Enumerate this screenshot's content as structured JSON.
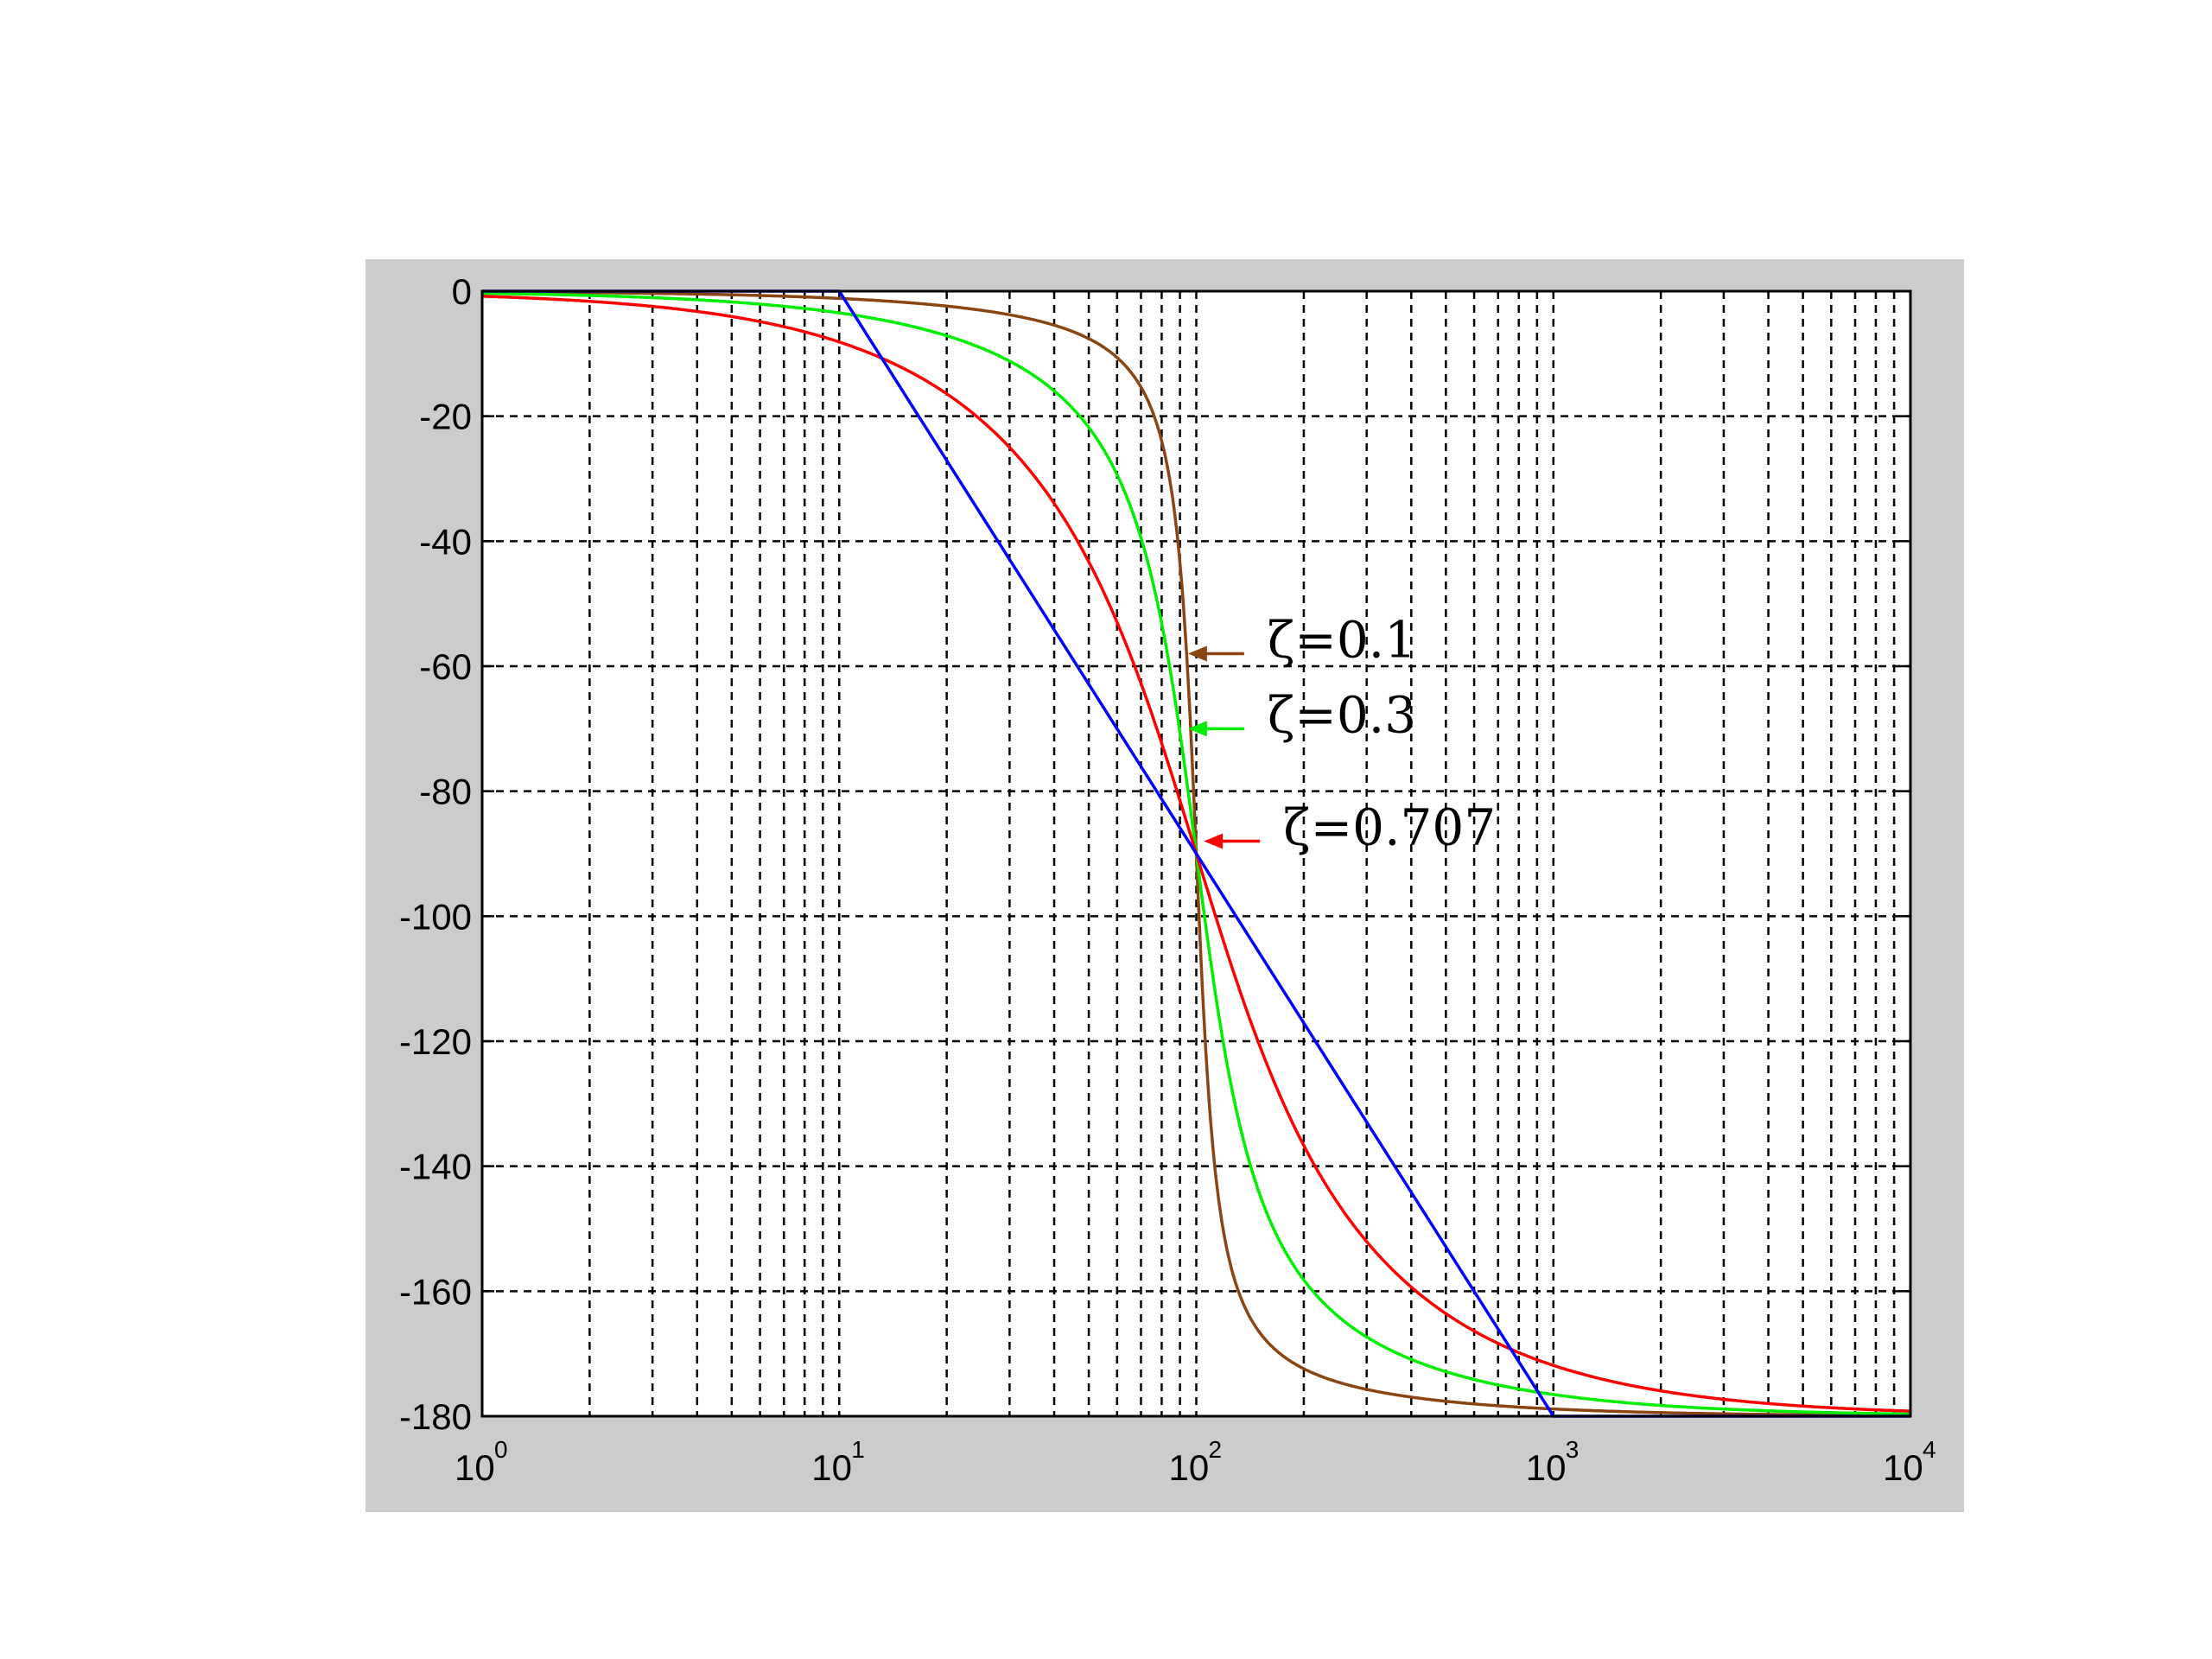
{
  "chart_data": {
    "type": "line",
    "title": "",
    "xlabel": "",
    "ylabel": "",
    "xscale": "log",
    "xlim": [
      1,
      10000
    ],
    "ylim": [
      -180,
      0
    ],
    "grid": true,
    "grid_style": "dashed",
    "x_ticks": [
      {
        "base": "10",
        "exp": "0"
      },
      {
        "base": "10",
        "exp": "1"
      },
      {
        "base": "10",
        "exp": "2"
      },
      {
        "base": "10",
        "exp": "3"
      },
      {
        "base": "10",
        "exp": "4"
      }
    ],
    "y_ticks": [
      "0",
      "-20",
      "-40",
      "-60",
      "-80",
      "-100",
      "-120",
      "-140",
      "-160",
      "-180"
    ],
    "natural_frequency": 100,
    "series": [
      {
        "name": "ζ=0.1",
        "zeta": 0.1,
        "color": "#8B4513"
      },
      {
        "name": "ζ=0.3",
        "zeta": 0.3,
        "color": "#00ee00"
      },
      {
        "name": "ζ=0.707",
        "zeta": 0.707,
        "color": "#ff0000"
      },
      {
        "asymptote": true,
        "color": "#0000ff",
        "points": [
          [
            1,
            0
          ],
          [
            10,
            0
          ],
          [
            1000,
            -180
          ],
          [
            10000,
            -180
          ]
        ]
      }
    ],
    "annotations": [
      {
        "text": "ζ=0.1",
        "color": "#8B4513",
        "x": 140,
        "y": -58
      },
      {
        "text": "ζ=0.3",
        "color": "#00ee00",
        "x": 140,
        "y": -70
      },
      {
        "text": "ζ=0.707",
        "color": "#ff0000",
        "x": 155,
        "y": -88
      }
    ]
  },
  "colors": {
    "frame": "#cccccc",
    "plot_bg": "#ffffff",
    "grid": "#000000"
  }
}
